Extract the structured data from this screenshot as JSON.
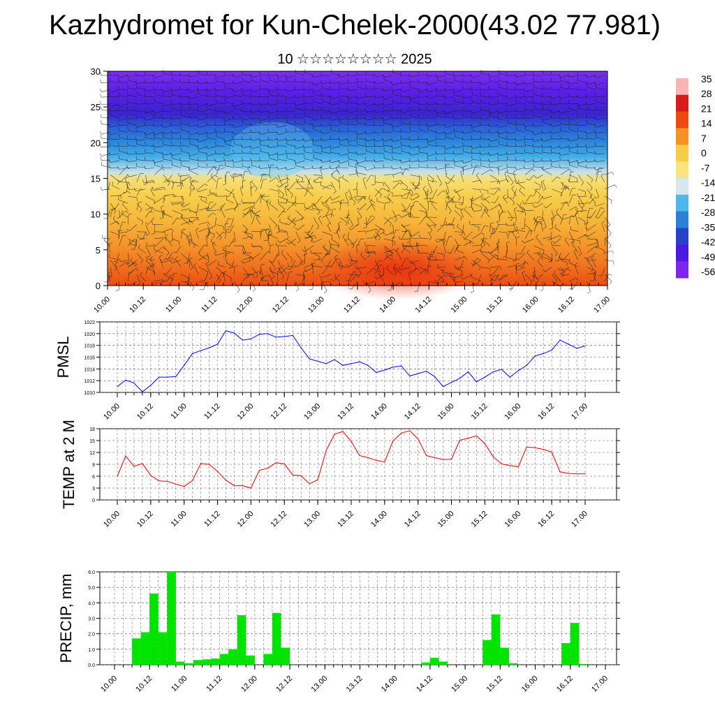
{
  "header": {
    "title": "Kazhydromet for Kun-Chelek-2000(43.02 77.981)",
    "subtitle": "10 ☆☆☆☆☆☆☆☆ 2025"
  },
  "colorbar": {
    "labels": [
      "35",
      "28",
      "21",
      "14",
      "7",
      "0",
      "-7",
      "-14",
      "-21",
      "-28",
      "-35",
      "-42",
      "-49",
      "-56"
    ],
    "colors": [
      "#f7b5b5",
      "#d81b1b",
      "#ee4a10",
      "#f59222",
      "#f8cc45",
      "#fbe47a",
      "#d6e7ee",
      "#4fb8ea",
      "#2c80d8",
      "#2742c8",
      "#4c19e0",
      "#7f26ec"
    ]
  },
  "chart_data": [
    {
      "type": "heatmap",
      "ylim": [
        0,
        30
      ],
      "y_ticks": [
        "0",
        "5",
        "10",
        "15",
        "20",
        "25",
        "30"
      ],
      "x_ticks": [
        "10.00",
        "10.12",
        "11.00",
        "11.12",
        "12.00",
        "12.12",
        "13.00",
        "13.12",
        "14.00",
        "14.12",
        "15.00",
        "15.12",
        "16.00",
        "16.12",
        "17.00"
      ],
      "description_values": {
        "temperature_range": [
          -56,
          35
        ]
      }
    },
    {
      "type": "line",
      "ylabel": "PMSL",
      "ylim": [
        1010,
        1022
      ],
      "y_ticks": [
        "1010",
        "1012",
        "1014",
        "1016",
        "1018",
        "1020",
        "1022"
      ],
      "x_ticks": [
        "10.00",
        "10.12",
        "11.00",
        "11.12",
        "12.00",
        "12.12",
        "13.00",
        "13.12",
        "14.00",
        "14.12",
        "15.00",
        "15.12",
        "16.00",
        "16.12",
        "17.00"
      ],
      "color": "#0000ff",
      "x_hours": [
        0,
        3,
        6,
        9,
        12,
        15,
        18,
        21,
        24,
        27,
        30,
        33,
        36,
        39,
        42,
        45,
        48,
        51,
        54,
        57,
        60,
        63,
        66,
        69,
        72,
        75,
        78,
        81,
        84,
        87,
        90,
        93,
        96,
        99,
        102,
        105,
        108,
        111,
        114,
        117,
        120,
        123,
        126,
        129,
        132,
        135,
        138,
        141,
        144,
        147,
        150,
        153,
        156,
        159,
        162,
        165,
        168
      ],
      "values": [
        1011.0,
        1012.1,
        1011.6,
        1010.1,
        1011.2,
        1012.6,
        1012.6,
        1012.7,
        1014.6,
        1016.6,
        1017.1,
        1017.6,
        1018.2,
        1020.5,
        1020.1,
        1018.9,
        1019.1,
        1019.9,
        1020.0,
        1019.4,
        1019.5,
        1019.7,
        1017.6,
        1015.7,
        1015.3,
        1014.9,
        1015.6,
        1014.6,
        1014.9,
        1015.2,
        1014.6,
        1013.4,
        1013.8,
        1014.3,
        1014.5,
        1012.8,
        1013.2,
        1013.6,
        1012.7,
        1011.0,
        1011.7,
        1012.4,
        1013.5,
        1011.8,
        1012.6,
        1013.5,
        1013.9,
        1012.6,
        1013.7,
        1014.6,
        1016.2,
        1016.6,
        1017.2,
        1018.9,
        1018.2,
        1017.5,
        1017.9
      ]
    },
    {
      "type": "line",
      "ylabel": "TEMP at 2 M",
      "ylim": [
        0,
        18
      ],
      "y_ticks": [
        "0",
        "3",
        "6",
        "9",
        "12",
        "15",
        "18"
      ],
      "x_ticks": [
        "10.00",
        "10.12",
        "11.00",
        "11.12",
        "12.00",
        "12.12",
        "13.00",
        "13.12",
        "14.00",
        "14.12",
        "15.00",
        "15.12",
        "16.00",
        "16.12",
        "17.00"
      ],
      "color": "#e00000",
      "x_hours": [
        0,
        3,
        6,
        9,
        12,
        15,
        18,
        21,
        24,
        27,
        30,
        33,
        36,
        39,
        42,
        45,
        48,
        51,
        54,
        57,
        60,
        63,
        66,
        69,
        72,
        75,
        78,
        81,
        84,
        87,
        90,
        93,
        96,
        99,
        102,
        105,
        108,
        111,
        114,
        117,
        120,
        123,
        126,
        129,
        132,
        135,
        138,
        141,
        144,
        147,
        150,
        153,
        156,
        159,
        162,
        165,
        168
      ],
      "values": [
        6.0,
        11.1,
        8.5,
        9.2,
        6.2,
        4.8,
        4.7,
        4.0,
        3.4,
        4.9,
        9.2,
        9.0,
        7.2,
        5.0,
        3.6,
        3.6,
        3.0,
        7.5,
        8.0,
        9.4,
        9.1,
        6.3,
        6.1,
        4.1,
        5.1,
        12.5,
        16.6,
        17.3,
        14.8,
        11.2,
        10.7,
        10.0,
        9.6,
        14.9,
        16.9,
        17.5,
        15.4,
        11.2,
        10.7,
        10.2,
        10.3,
        15.1,
        15.6,
        16.2,
        14.2,
        10.9,
        9.1,
        8.7,
        8.4,
        13.4,
        13.2,
        12.8,
        12.1,
        7.1,
        6.7,
        6.6,
        6.6
      ]
    },
    {
      "type": "bar",
      "ylabel": "PRECIP, mm",
      "ylim": [
        0,
        6
      ],
      "y_ticks": [
        "0.0",
        "1.0",
        "2.0",
        "3.0",
        "4.0",
        "5.0",
        "6.0"
      ],
      "x_ticks": [
        "10.00",
        "10.12",
        "11.00",
        "11.12",
        "12.00",
        "12.12",
        "13.00",
        "13.12",
        "14.00",
        "14.12",
        "15.00",
        "15.12",
        "16.00",
        "16.12",
        "17.00"
      ],
      "color": "#00e400",
      "x_hours": [
        6,
        9,
        12,
        15,
        18,
        21,
        24,
        27,
        30,
        33,
        36,
        39,
        42,
        45,
        48,
        51,
        54,
        57,
        60,
        63,
        66,
        69,
        72,
        75,
        78,
        81,
        84,
        87,
        90,
        93,
        96,
        99,
        102,
        105,
        108,
        111,
        114,
        117,
        120,
        123,
        126,
        129,
        132,
        135,
        138,
        141,
        144,
        147,
        150,
        153,
        156,
        159,
        162,
        165
      ],
      "values": [
        1.7,
        2.1,
        4.6,
        2.1,
        6.0,
        0.2,
        0.1,
        0.3,
        0.35,
        0.4,
        0.7,
        1.0,
        3.2,
        0.6,
        0,
        0.7,
        3.35,
        1.1,
        0,
        0,
        0,
        0,
        0,
        0,
        0,
        0,
        0,
        0,
        0,
        0,
        0,
        0,
        0,
        0.15,
        0.45,
        0.2,
        0,
        0,
        0,
        0,
        1.6,
        3.25,
        1.1,
        0.1,
        0,
        0,
        0,
        0,
        0,
        1.4,
        2.7,
        0.05,
        0,
        0
      ]
    }
  ]
}
